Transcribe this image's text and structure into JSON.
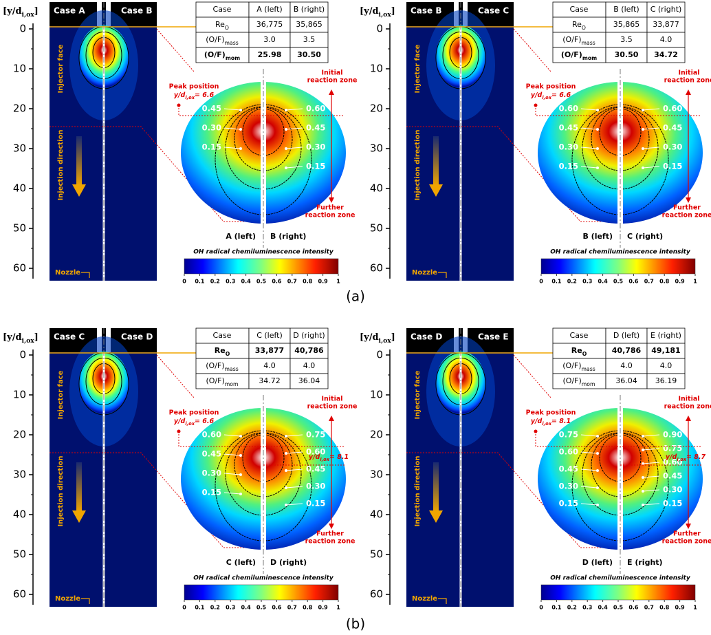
{
  "common": {
    "axis_label": {
      "pre": "[y/d",
      "sub": "i,ox",
      "post": "]"
    },
    "yticks": [
      0,
      10,
      20,
      30,
      40,
      50,
      60
    ],
    "injector_face": "Injector face",
    "injection_direction": "Injection direction",
    "nozzle": "Nozzle",
    "table_header_case": "Case",
    "row_labels": [
      {
        "main": "Re",
        "sub": "O"
      },
      {
        "main": "(O/F)",
        "sub": "mass"
      },
      {
        "main": "(O/F)",
        "sub": "mom"
      }
    ],
    "initial_zone": [
      "Initial",
      "reaction zone"
    ],
    "further_zone": [
      "Further",
      "reaction zone"
    ],
    "peak_label": "Peak position",
    "peak_symbol": {
      "pre": "y/d",
      "sub": "i,ox"
    },
    "colorbar_title": "OH radical  chemiluminescence intensity",
    "colorbar_ticks": [
      0,
      0.1,
      0.2,
      0.3,
      0.4,
      0.5,
      0.6,
      0.7,
      0.8,
      0.9,
      1
    ]
  },
  "captions": [
    "(a)",
    "(b)"
  ],
  "panels": [
    {
      "case_left": "Case A",
      "case_right": "Case B",
      "table_header": [
        "A (left)",
        "B (right)"
      ],
      "table_rows": [
        [
          "36,775",
          "35,865"
        ],
        [
          "3.0",
          "3.5"
        ],
        [
          "25.98",
          "30.50"
        ]
      ],
      "bold_row": 2,
      "contours_left": [
        "0.45",
        "0.30",
        "0.15"
      ],
      "contours_right": [
        "0.60",
        "0.45",
        "0.30",
        "0.15"
      ],
      "peak_left": "= 6.6",
      "bottom_left": "A (left)",
      "bottom_right": "B (right)"
    },
    {
      "case_left": "Case B",
      "case_right": "Case C",
      "table_header": [
        "B (left)",
        "C (right)"
      ],
      "table_rows": [
        [
          "35,865",
          "33,877"
        ],
        [
          "3.5",
          "4.0"
        ],
        [
          "30.50",
          "34.72"
        ]
      ],
      "bold_row": 2,
      "contours_left": [
        "0.60",
        "0.45",
        "0.30",
        "0.15"
      ],
      "contours_right": [
        "0.60",
        "0.45",
        "0.30",
        "0.15"
      ],
      "peak_left": "= 6.6",
      "bottom_left": "B (left)",
      "bottom_right": "C (right)"
    },
    {
      "case_left": "Case C",
      "case_right": "Case D",
      "table_header": [
        "C (left)",
        "D (right)"
      ],
      "table_rows": [
        [
          "33,877",
          "40,786"
        ],
        [
          "4.0",
          "4.0"
        ],
        [
          "34.72",
          "36.04"
        ]
      ],
      "bold_row": 0,
      "contours_left": [
        "0.60",
        "0.45",
        "0.30",
        "0.15"
      ],
      "contours_right": [
        "0.75",
        "0.60",
        "0.45",
        "0.30",
        "0.15"
      ],
      "peak_left": "= 6.6",
      "peak_right": "= 8.1",
      "bottom_left": "C (left)",
      "bottom_right": "D (right)"
    },
    {
      "case_left": "Case D",
      "case_right": "Case E",
      "table_header": [
        "D (left)",
        "E (right)"
      ],
      "table_rows": [
        [
          "40,786",
          "49,181"
        ],
        [
          "4.0",
          "4.0"
        ],
        [
          "36.04",
          "36.19"
        ]
      ],
      "bold_row": 0,
      "contours_left": [
        "0.75",
        "0.60",
        "0.45",
        "0.30",
        "0.15"
      ],
      "contours_right": [
        "0.90",
        "0.75",
        "0.60",
        "0.45",
        "0.30",
        "0.15"
      ],
      "peak_left": "= 8.1",
      "peak_right": "= 8.7",
      "bottom_left": "D (left)",
      "bottom_right": "E (right)"
    }
  ]
}
